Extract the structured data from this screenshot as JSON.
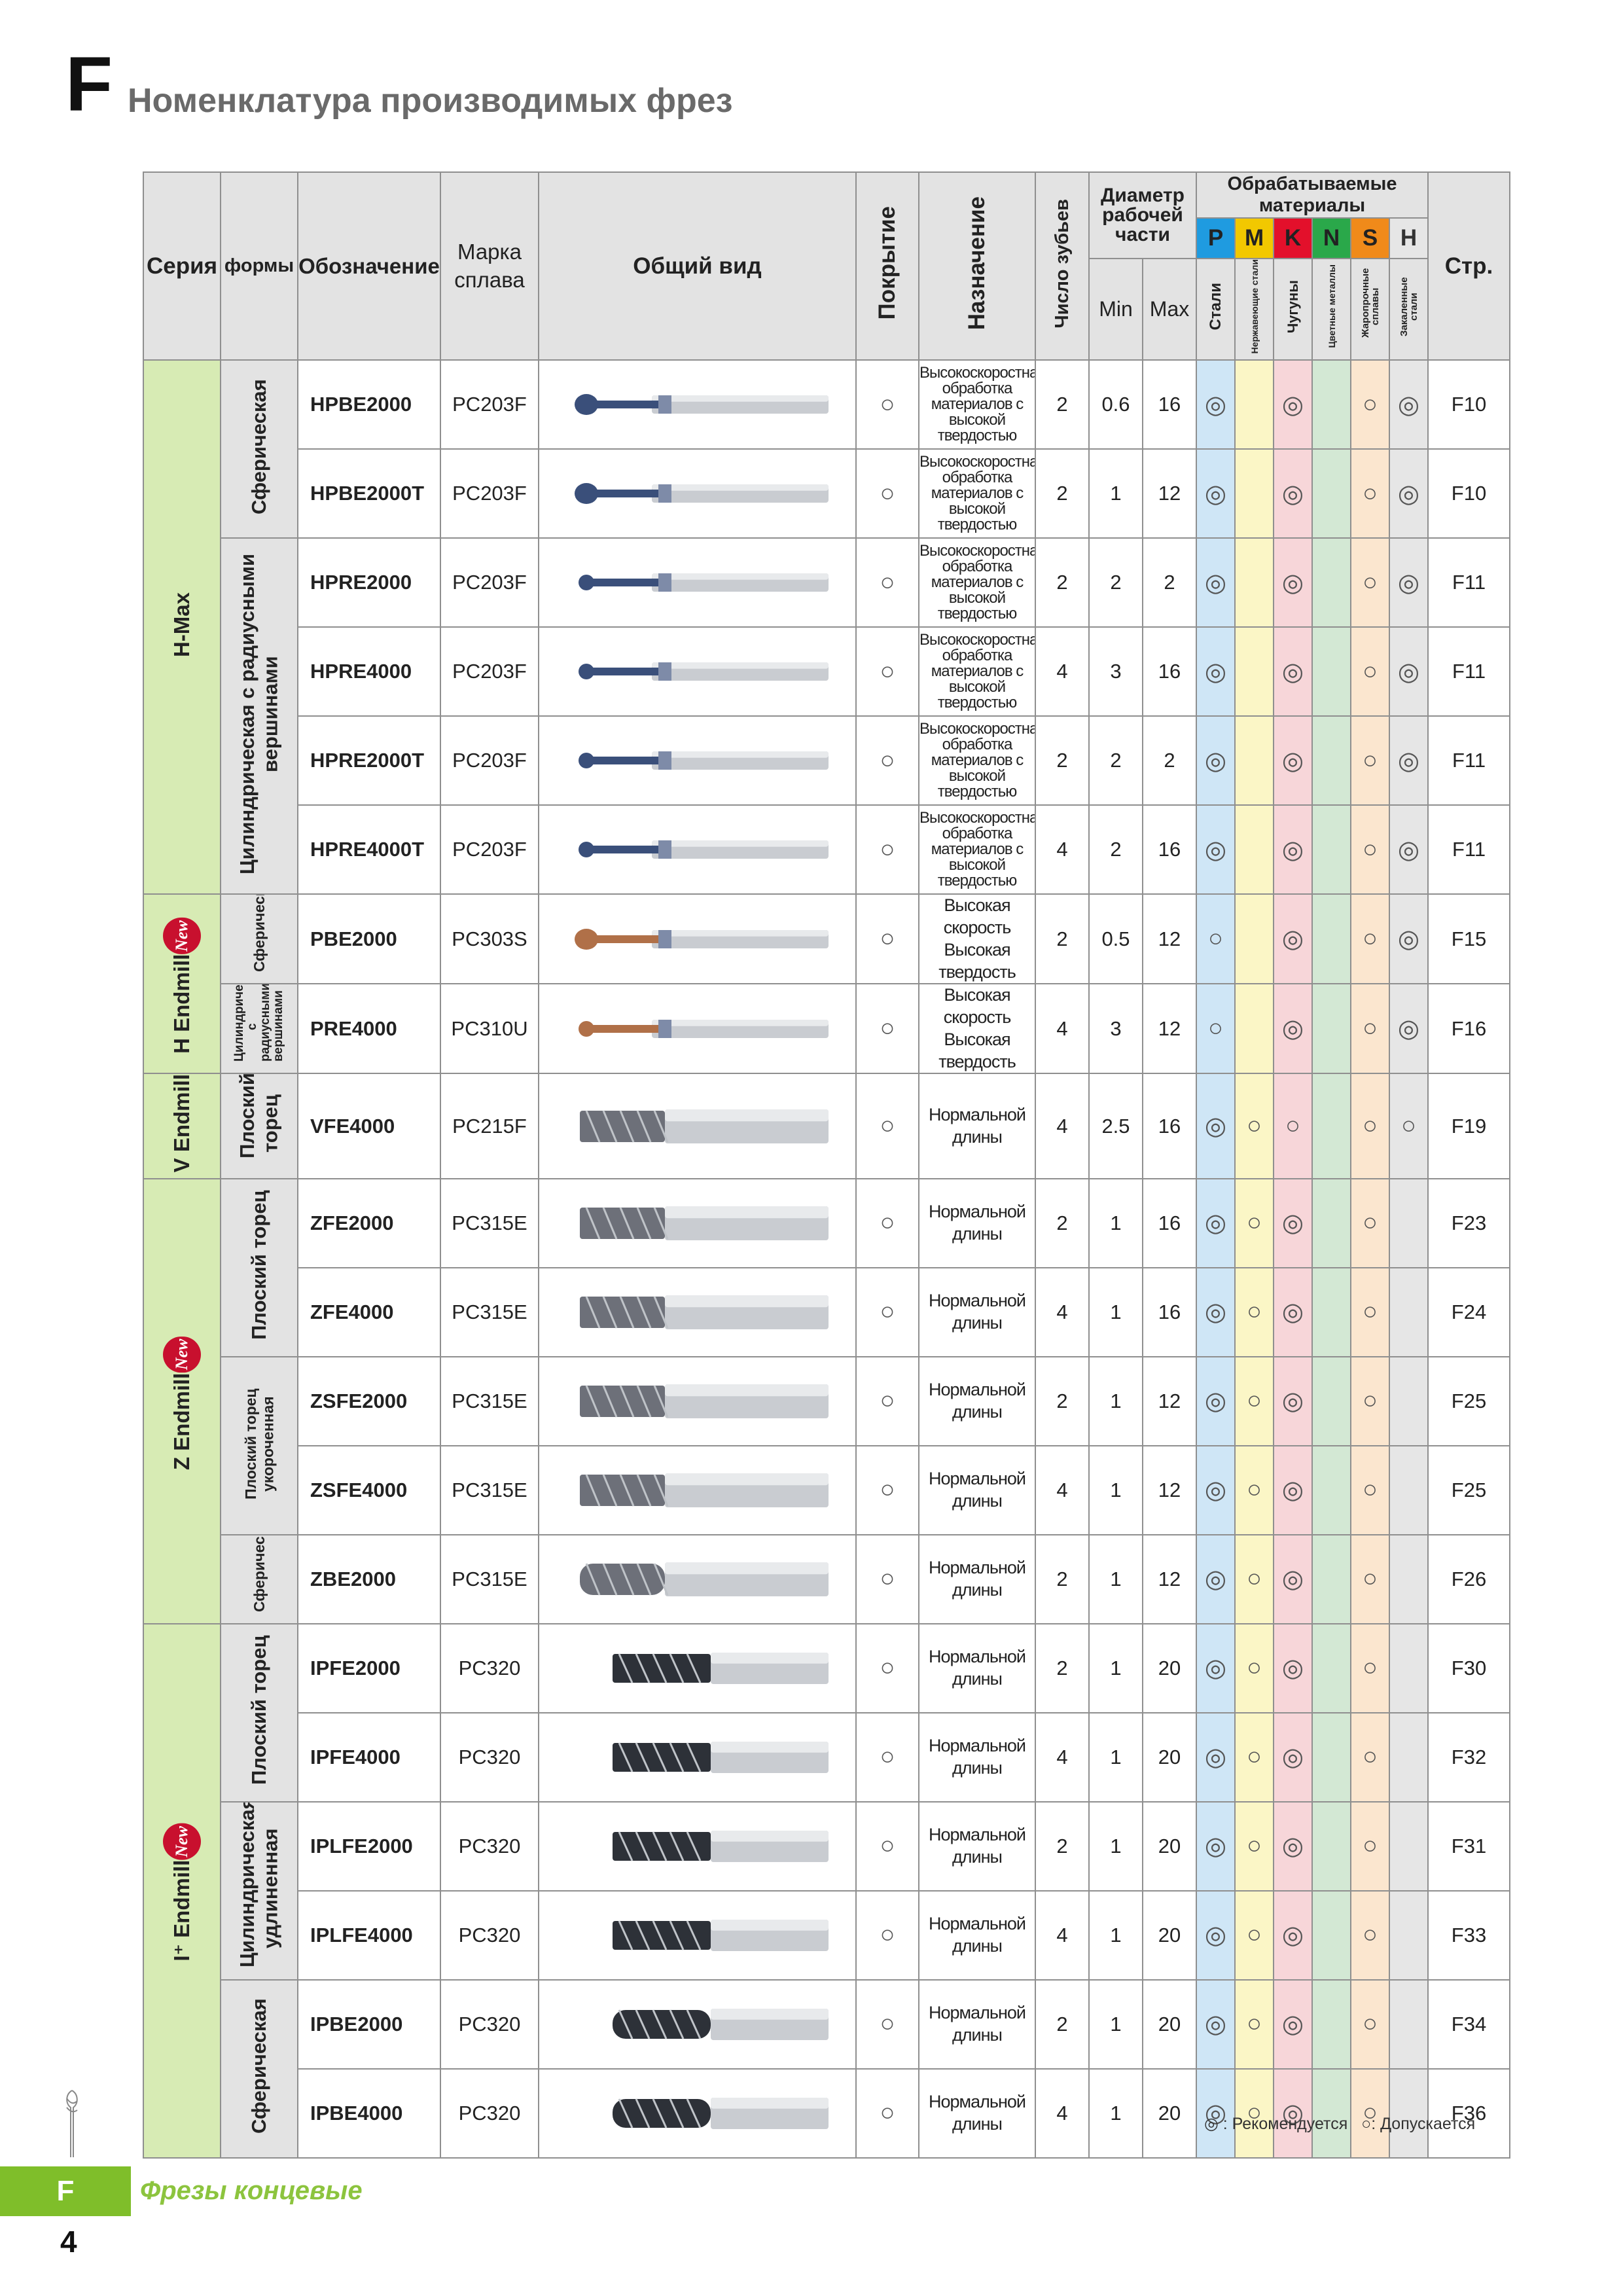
{
  "header": {
    "letter": "F",
    "title": "Номенклатура производимых фрез"
  },
  "table": {
    "h_series": "Серия",
    "h_form": "формы",
    "h_code": "Обозначение",
    "h_alloy": "Марка сплава",
    "h_view": "Общий вид",
    "h_coating": "Покрытие",
    "h_purpose": "Назначение",
    "h_teeth": "Число зубьев",
    "h_diam": "Диаметр рабочей части",
    "h_min": "Min",
    "h_max": "Max",
    "h_materials": "Обрабатываемые материалы",
    "h_page": "Стр.",
    "mat_letters": [
      "P",
      "M",
      "K",
      "N",
      "S",
      "H"
    ],
    "mat_colors": [
      "#1f9be0",
      "#f2c800",
      "#e3102b",
      "#2aa84a",
      "#f08a1a",
      "#9a9a9a"
    ],
    "mat_names": [
      "Стали",
      "Нержавеющие стали",
      "Чугуны",
      "Цветные металлы",
      "Жаропрочные сплавы",
      "Закаленные стали"
    ],
    "series": [
      {
        "name": "H-Max",
        "new": ""
      },
      {
        "name": "H Endmill",
        "new": "New"
      },
      {
        "name": "V Endmill",
        "new": ""
      },
      {
        "name": "Z Endmill",
        "new": "New"
      },
      {
        "name": "I⁺ Endmill",
        "new": "New"
      }
    ],
    "forms": [
      "Сферическая",
      "Цилиндрическая с радиусными вершинами",
      "Сферическая",
      "Цилиндрическая с радиусными вершинами",
      "Плоский торец",
      "Плоский торец",
      "Плоский торец укороченная",
      "Сферическая",
      "Плоский торец",
      "Цилиндрическая удлиненная",
      "Сферическая"
    ],
    "rows": [
      {
        "code": "HPBE2000",
        "alloy": "PC203F",
        "coat": "○",
        "purpose": "Высокоскоростная обработка материалов с высокой твердостью",
        "teeth": "2",
        "min": "0.6",
        "max": "16",
        "P": "◎",
        "M": "",
        "K": "◎",
        "N": "",
        "S": "○",
        "H": "◎",
        "page": "F10"
      },
      {
        "code": "HPBE2000T",
        "alloy": "PC203F",
        "coat": "○",
        "purpose": "Высокоскоростная обработка материалов с высокой твердостью",
        "teeth": "2",
        "min": "1",
        "max": "12",
        "P": "◎",
        "M": "",
        "K": "◎",
        "N": "",
        "S": "○",
        "H": "◎",
        "page": "F10"
      },
      {
        "code": "HPRE2000",
        "alloy": "PC203F",
        "coat": "○",
        "purpose": "Высокоскоростная обработка материалов с высокой твердостью",
        "teeth": "2",
        "min": "2",
        "max": "2",
        "P": "◎",
        "M": "",
        "K": "◎",
        "N": "",
        "S": "○",
        "H": "◎",
        "page": "F11"
      },
      {
        "code": "HPRE4000",
        "alloy": "PC203F",
        "coat": "○",
        "purpose": "Высокоскоростная обработка материалов с высокой твердостью",
        "teeth": "4",
        "min": "3",
        "max": "16",
        "P": "◎",
        "M": "",
        "K": "◎",
        "N": "",
        "S": "○",
        "H": "◎",
        "page": "F11"
      },
      {
        "code": "HPRE2000T",
        "alloy": "PC203F",
        "coat": "○",
        "purpose": "Высокоскоростная обработка материалов с высокой твердостью",
        "teeth": "2",
        "min": "2",
        "max": "2",
        "P": "◎",
        "M": "",
        "K": "◎",
        "N": "",
        "S": "○",
        "H": "◎",
        "page": "F11"
      },
      {
        "code": "HPRE4000T",
        "alloy": "PC203F",
        "coat": "○",
        "purpose": "Высокоскоростная обработка материалов с высокой твердостью",
        "teeth": "4",
        "min": "2",
        "max": "16",
        "P": "◎",
        "M": "",
        "K": "◎",
        "N": "",
        "S": "○",
        "H": "◎",
        "page": "F11"
      },
      {
        "code": "PBE2000",
        "alloy": "PC303S",
        "coat": "○",
        "purpose": "Высокая скорость Высокая твердость",
        "teeth": "2",
        "min": "0.5",
        "max": "12",
        "P": "○",
        "M": "",
        "K": "◎",
        "N": "",
        "S": "○",
        "H": "◎",
        "page": "F15"
      },
      {
        "code": "PRE4000",
        "alloy": "PC310U",
        "coat": "○",
        "purpose": "Высокая скорость Высокая твердость",
        "teeth": "4",
        "min": "3",
        "max": "12",
        "P": "○",
        "M": "",
        "K": "◎",
        "N": "",
        "S": "○",
        "H": "◎",
        "page": "F16"
      },
      {
        "code": "VFE4000",
        "alloy": "PC215F",
        "coat": "○",
        "purpose": "Нормальной длины",
        "teeth": "4",
        "min": "2.5",
        "max": "16",
        "P": "◎",
        "M": "○",
        "K": "○",
        "N": "",
        "S": "○",
        "H": "○",
        "page": "F19"
      },
      {
        "code": "ZFE2000",
        "alloy": "PC315E",
        "coat": "○",
        "purpose": "Нормальной длины",
        "teeth": "2",
        "min": "1",
        "max": "16",
        "P": "◎",
        "M": "○",
        "K": "◎",
        "N": "",
        "S": "○",
        "H": "",
        "page": "F23"
      },
      {
        "code": "ZFE4000",
        "alloy": "PC315E",
        "coat": "○",
        "purpose": "Нормальной длины",
        "teeth": "4",
        "min": "1",
        "max": "16",
        "P": "◎",
        "M": "○",
        "K": "◎",
        "N": "",
        "S": "○",
        "H": "",
        "page": "F24"
      },
      {
        "code": "ZSFE2000",
        "alloy": "PC315E",
        "coat": "○",
        "purpose": "Нормальной длины",
        "teeth": "2",
        "min": "1",
        "max": "12",
        "P": "◎",
        "M": "○",
        "K": "◎",
        "N": "",
        "S": "○",
        "H": "",
        "page": "F25"
      },
      {
        "code": "ZSFE4000",
        "alloy": "PC315E",
        "coat": "○",
        "purpose": "Нормальной длины",
        "teeth": "4",
        "min": "1",
        "max": "12",
        "P": "◎",
        "M": "○",
        "K": "◎",
        "N": "",
        "S": "○",
        "H": "",
        "page": "F25"
      },
      {
        "code": "ZBE2000",
        "alloy": "PC315E",
        "coat": "○",
        "purpose": "Нормальной длины",
        "teeth": "2",
        "min": "1",
        "max": "12",
        "P": "◎",
        "M": "○",
        "K": "◎",
        "N": "",
        "S": "○",
        "H": "",
        "page": "F26"
      },
      {
        "code": "IPFE2000",
        "alloy": "PC320",
        "coat": "○",
        "purpose": "Нормальной длины",
        "teeth": "2",
        "min": "1",
        "max": "20",
        "P": "◎",
        "M": "○",
        "K": "◎",
        "N": "",
        "S": "○",
        "H": "",
        "page": "F30"
      },
      {
        "code": "IPFE4000",
        "alloy": "PC320",
        "coat": "○",
        "purpose": "Нормальной длины",
        "teeth": "4",
        "min": "1",
        "max": "20",
        "P": "◎",
        "M": "○",
        "K": "◎",
        "N": "",
        "S": "○",
        "H": "",
        "page": "F32"
      },
      {
        "code": "IPLFE2000",
        "alloy": "PC320",
        "coat": "○",
        "purpose": "Нормальной длины",
        "teeth": "2",
        "min": "1",
        "max": "20",
        "P": "◎",
        "M": "○",
        "K": "◎",
        "N": "",
        "S": "○",
        "H": "",
        "page": "F31"
      },
      {
        "code": "IPLFE4000",
        "alloy": "PC320",
        "coat": "○",
        "purpose": "Нормальной длины",
        "teeth": "4",
        "min": "1",
        "max": "20",
        "P": "◎",
        "M": "○",
        "K": "◎",
        "N": "",
        "S": "○",
        "H": "",
        "page": "F33"
      },
      {
        "code": "IPBE2000",
        "alloy": "PC320",
        "coat": "○",
        "purpose": "Нормальной длины",
        "teeth": "2",
        "min": "1",
        "max": "20",
        "P": "◎",
        "M": "○",
        "K": "◎",
        "N": "",
        "S": "○",
        "H": "",
        "page": "F34"
      },
      {
        "code": "IPBE4000",
        "alloy": "PC320",
        "coat": "○",
        "purpose": "Нормальной длины",
        "teeth": "4",
        "min": "1",
        "max": "20",
        "P": "◎",
        "M": "○",
        "K": "◎",
        "N": "",
        "S": "○",
        "H": "",
        "page": "F36"
      }
    ]
  },
  "legend": {
    "recommended": "◎ : Рекомендуется",
    "allowed": "○: Допускается"
  },
  "footer": {
    "box_letter": "F",
    "section": "Фрезы концевые",
    "page_number": "4"
  }
}
